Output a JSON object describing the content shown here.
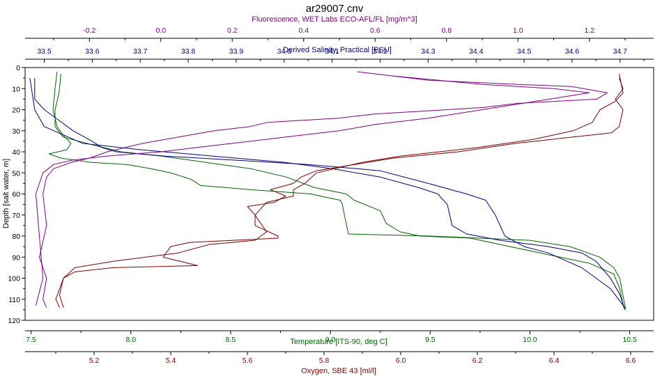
{
  "chart_data": {
    "type": "line",
    "title": "ar29007.cnv",
    "depth_axis": {
      "label": "Depth [salt water, m]",
      "range": [
        0,
        120
      ],
      "ticks": [
        "0",
        "10",
        "20",
        "30",
        "40",
        "50",
        "60",
        "70",
        "80",
        "90",
        "100",
        "110",
        "120"
      ],
      "inverted": true
    },
    "x_axes": {
      "fluorescence": {
        "label": "Fluorescence, WET Labs ECO-AFL/FL [mg/m^3]",
        "range": [
          -0.38,
          1.38
        ],
        "ticks": [
          "-0.2",
          "0.0",
          "0.2",
          "0.4",
          "0.6",
          "0.8",
          "1.0",
          "1.2"
        ],
        "color": "#800080",
        "position": "top"
      },
      "salinity": {
        "label": "Derived Salinity, Practical [PSU",
        "label_suffix": "]",
        "range": [
          33.46,
          34.77
        ],
        "ticks": [
          "33.5",
          "33.6",
          "33.7",
          "33.8",
          "33.9",
          "34.0",
          "34.1",
          "34.2",
          "34.3",
          "34.4",
          "34.5",
          "34.6",
          "34.7"
        ],
        "color": "#000080",
        "position": "top"
      },
      "temperature": {
        "label": "Temperature [ITS-90, deg C]",
        "range": [
          7.47,
          10.62
        ],
        "ticks": [
          "7.5",
          "8.0",
          "8.5",
          "9.0",
          "9.5",
          "10.0",
          "10.5"
        ],
        "color": "#006400",
        "position": "bottom"
      },
      "oxygen": {
        "label": "Oxygen, SBE 43 [ml/l]",
        "range": [
          5.02,
          6.66
        ],
        "ticks": [
          "5.2",
          "5.4",
          "5.6",
          "5.8",
          "6.0",
          "6.2",
          "6.4",
          "6.6"
        ],
        "color": "#800000",
        "position": "bottom"
      }
    },
    "grid": false,
    "series": [
      {
        "axis": "temperature",
        "color": "#006400",
        "points": [
          [
            7.63,
            2
          ],
          [
            7.62,
            10
          ],
          [
            7.61,
            20
          ],
          [
            7.63,
            28
          ],
          [
            7.66,
            32
          ],
          [
            7.7,
            36
          ],
          [
            7.68,
            39
          ],
          [
            7.59,
            41
          ],
          [
            7.65,
            43
          ],
          [
            7.8,
            45
          ],
          [
            7.98,
            46
          ],
          [
            8.1,
            48
          ],
          [
            8.2,
            50
          ],
          [
            8.3,
            53
          ],
          [
            8.35,
            56
          ],
          [
            8.6,
            58
          ],
          [
            8.9,
            60
          ],
          [
            9.0,
            62
          ],
          [
            9.05,
            63
          ],
          [
            9.06,
            65
          ],
          [
            9.07,
            70
          ],
          [
            9.09,
            79
          ],
          [
            9.5,
            80
          ],
          [
            10.0,
            82
          ],
          [
            10.2,
            85
          ],
          [
            10.35,
            90
          ],
          [
            10.42,
            95
          ],
          [
            10.45,
            100
          ],
          [
            10.47,
            110
          ],
          [
            10.48,
            115
          ]
        ]
      },
      {
        "axis": "temperature",
        "color": "#006400",
        "points": [
          [
            7.65,
            3
          ],
          [
            7.64,
            12
          ],
          [
            7.62,
            20
          ],
          [
            7.62,
            28
          ],
          [
            7.66,
            33
          ],
          [
            7.82,
            37
          ],
          [
            7.95,
            40
          ],
          [
            8.15,
            42
          ],
          [
            8.3,
            44
          ],
          [
            8.45,
            46
          ],
          [
            8.6,
            48
          ],
          [
            8.78,
            52
          ],
          [
            8.92,
            57
          ],
          [
            9.08,
            60
          ],
          [
            9.12,
            63
          ],
          [
            9.25,
            68
          ],
          [
            9.28,
            74
          ],
          [
            9.35,
            78
          ],
          [
            9.45,
            80
          ],
          [
            9.7,
            81
          ],
          [
            9.9,
            85
          ],
          [
            10.1,
            89
          ],
          [
            10.3,
            93
          ],
          [
            10.42,
            98
          ],
          [
            10.45,
            105
          ],
          [
            10.47,
            114
          ]
        ]
      },
      {
        "axis": "salinity",
        "color": "#000080",
        "points": [
          [
            33.48,
            5
          ],
          [
            33.48,
            15
          ],
          [
            33.5,
            20
          ],
          [
            33.53,
            25
          ],
          [
            33.56,
            30
          ],
          [
            33.6,
            35
          ],
          [
            33.62,
            38
          ],
          [
            33.65,
            40
          ],
          [
            33.75,
            42
          ],
          [
            33.9,
            44
          ],
          [
            34.05,
            46
          ],
          [
            34.2,
            49
          ],
          [
            34.3,
            55
          ],
          [
            34.38,
            60
          ],
          [
            34.42,
            63
          ],
          [
            34.44,
            70
          ],
          [
            34.46,
            80
          ],
          [
            34.5,
            85
          ],
          [
            34.55,
            88
          ],
          [
            34.62,
            95
          ],
          [
            34.68,
            105
          ],
          [
            34.71,
            114
          ]
        ]
      },
      {
        "axis": "salinity",
        "color": "#000080",
        "points": [
          [
            33.47,
            5
          ],
          [
            33.48,
            20
          ],
          [
            33.5,
            28
          ],
          [
            33.55,
            33
          ],
          [
            33.58,
            36
          ],
          [
            33.7,
            39
          ],
          [
            33.85,
            42
          ],
          [
            34.0,
            45
          ],
          [
            34.1,
            48
          ],
          [
            34.2,
            52
          ],
          [
            34.28,
            57
          ],
          [
            34.32,
            60
          ],
          [
            34.34,
            65
          ],
          [
            34.35,
            75
          ],
          [
            34.38,
            79
          ],
          [
            34.45,
            82
          ],
          [
            34.55,
            85
          ],
          [
            34.62,
            88
          ],
          [
            34.65,
            92
          ],
          [
            34.68,
            100
          ],
          [
            34.7,
            108
          ],
          [
            34.71,
            115
          ]
        ]
      },
      {
        "axis": "fluorescence",
        "color": "#800080",
        "points": [
          [
            0.55,
            2
          ],
          [
            0.75,
            6
          ],
          [
            1.0,
            8
          ],
          [
            1.15,
            9
          ],
          [
            1.25,
            12
          ],
          [
            1.22,
            15
          ],
          [
            1.0,
            17
          ],
          [
            0.9,
            19
          ],
          [
            0.6,
            22
          ],
          [
            0.5,
            24
          ],
          [
            0.3,
            26
          ],
          [
            0.25,
            28
          ],
          [
            0.15,
            30
          ],
          [
            0.05,
            33
          ],
          [
            -0.05,
            36
          ],
          [
            -0.15,
            40
          ],
          [
            -0.2,
            43
          ],
          [
            -0.25,
            45
          ],
          [
            -0.3,
            48
          ],
          [
            -0.32,
            52
          ],
          [
            -0.33,
            60
          ],
          [
            -0.32,
            75
          ],
          [
            -0.34,
            90
          ],
          [
            -0.32,
            100
          ],
          [
            -0.33,
            110
          ],
          [
            -0.32,
            114
          ]
        ]
      },
      {
        "axis": "fluorescence",
        "color": "#800080",
        "points": [
          [
            0.65,
            4
          ],
          [
            0.9,
            8
          ],
          [
            1.1,
            10
          ],
          [
            1.2,
            12
          ],
          [
            1.05,
            16
          ],
          [
            0.9,
            20
          ],
          [
            0.75,
            24
          ],
          [
            0.6,
            27
          ],
          [
            0.5,
            30
          ],
          [
            0.35,
            33
          ],
          [
            0.15,
            37
          ],
          [
            0.0,
            40
          ],
          [
            -0.15,
            42
          ],
          [
            -0.25,
            44
          ],
          [
            -0.3,
            46
          ],
          [
            -0.33,
            50
          ],
          [
            -0.35,
            60
          ],
          [
            -0.34,
            80
          ],
          [
            -0.33,
            100
          ],
          [
            -0.35,
            113
          ]
        ]
      },
      {
        "axis": "oxygen",
        "color": "#800000",
        "points": [
          [
            6.57,
            5
          ],
          [
            6.58,
            10
          ],
          [
            6.56,
            15
          ],
          [
            6.58,
            20
          ],
          [
            6.57,
            28
          ],
          [
            6.55,
            31
          ],
          [
            6.45,
            33
          ],
          [
            6.3,
            36
          ],
          [
            6.15,
            40
          ],
          [
            5.98,
            43
          ],
          [
            5.88,
            46
          ],
          [
            5.78,
            49
          ],
          [
            5.74,
            52
          ],
          [
            5.72,
            55
          ],
          [
            5.66,
            58
          ],
          [
            5.7,
            61
          ],
          [
            5.67,
            64
          ],
          [
            5.6,
            66
          ],
          [
            5.62,
            70
          ],
          [
            5.62,
            75
          ],
          [
            5.68,
            80
          ],
          [
            5.68,
            81
          ],
          [
            5.45,
            83
          ],
          [
            5.4,
            85
          ],
          [
            5.38,
            90
          ],
          [
            5.47,
            94
          ],
          [
            5.25,
            95
          ],
          [
            5.15,
            97
          ],
          [
            5.12,
            100
          ],
          [
            5.11,
            105
          ],
          [
            5.1,
            110
          ],
          [
            5.11,
            114
          ]
        ]
      },
      {
        "axis": "oxygen",
        "color": "#800000",
        "points": [
          [
            6.57,
            3
          ],
          [
            6.58,
            12
          ],
          [
            6.56,
            16
          ],
          [
            6.52,
            20
          ],
          [
            6.5,
            26
          ],
          [
            6.45,
            30
          ],
          [
            6.35,
            34
          ],
          [
            6.2,
            38
          ],
          [
            6.0,
            42
          ],
          [
            5.9,
            45
          ],
          [
            5.78,
            50
          ],
          [
            5.75,
            55
          ],
          [
            5.72,
            58
          ],
          [
            5.72,
            61
          ],
          [
            5.65,
            64
          ],
          [
            5.62,
            70
          ],
          [
            5.65,
            78
          ],
          [
            5.62,
            82
          ],
          [
            5.5,
            84
          ],
          [
            5.42,
            88
          ],
          [
            5.25,
            92
          ],
          [
            5.15,
            95
          ],
          [
            5.12,
            100
          ],
          [
            5.11,
            108
          ],
          [
            5.12,
            114
          ]
        ]
      }
    ]
  }
}
